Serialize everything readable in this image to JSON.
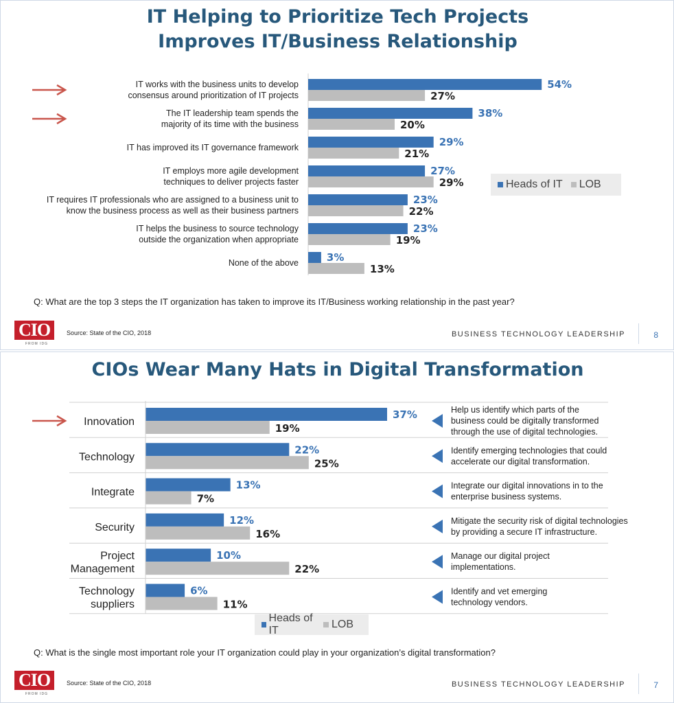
{
  "colors": {
    "heads_of_it": "#3a73b4",
    "lob": "#bdbdbd",
    "title": "#27587b",
    "arrow": "#c9564c",
    "logo": "#c41f2b"
  },
  "slide1": {
    "title_line1": "IT Helping to Prioritize Tech Projects",
    "title_line2": "Improves IT/Business Relationship",
    "legend": {
      "it": "Heads of IT",
      "lob": "LOB"
    },
    "question": "Q: What are the top 3 steps the IT organization has taken to improve its IT/Business working relationship in the past year?",
    "logo": "CIO",
    "logo_sub": "FROM IDG",
    "source": "Source: State of the CIO, 2018",
    "footer": "BUSINESS TECHNOLOGY LEADERSHIP",
    "page": "8"
  },
  "slide2": {
    "title": "CIOs Wear Many Hats in Digital Transformation",
    "legend": {
      "it": "Heads of IT",
      "lob": "LOB"
    },
    "question": "Q: What is the single most important role your IT organization could play in your organization’s digital transformation?",
    "logo": "CIO",
    "logo_sub": "FROM IDG",
    "source": "Source: State of the CIO, 2018",
    "footer": "BUSINESS TECHNOLOGY LEADERSHIP",
    "page": "7",
    "descriptions": [
      [
        "Help us identify which parts of the",
        "business could be digitally transformed",
        "through the use of digital technologies."
      ],
      [
        "Identify emerging technologies that could",
        "accelerate our digital transformation."
      ],
      [
        "Integrate our digital innovations in to the",
        "enterprise business systems."
      ],
      [
        "Mitigate the security risk of digital technologies",
        "by providing a secure IT infrastructure."
      ],
      [
        "Manage our digital project",
        "implementations."
      ],
      [
        "Identify and vet emerging",
        "technology vendors."
      ]
    ]
  },
  "chart_data": [
    {
      "type": "bar",
      "orientation": "horizontal",
      "title": "IT Helping to Prioritize Tech Projects Improves IT/Business Relationship",
      "categories": [
        [
          "IT works with the business units to develop",
          "consensus around prioritization of IT projects"
        ],
        [
          "The IT leadership team spends the",
          "majority of its time with the business"
        ],
        [
          "IT has improved its IT governance framework"
        ],
        [
          "IT employs more agile development",
          "techniques to deliver projects faster"
        ],
        [
          "IT requires IT professionals who are assigned to a business unit to",
          "know the business process as well as their business partners"
        ],
        [
          "IT helps the business to source technology",
          "outside the organization when appropriate"
        ],
        [
          "None of the above"
        ]
      ],
      "series": [
        {
          "name": "Heads of IT",
          "values": [
            54,
            38,
            29,
            27,
            23,
            23,
            3
          ]
        },
        {
          "name": "LOB",
          "values": [
            27,
            20,
            21,
            29,
            22,
            19,
            13
          ]
        }
      ],
      "value_suffix": "%",
      "highlighted": [
        0,
        1
      ],
      "legend_position": "right"
    },
    {
      "type": "bar",
      "orientation": "horizontal",
      "title": "CIOs Wear Many Hats in Digital Transformation",
      "categories": [
        [
          "Innovation"
        ],
        [
          "Technology"
        ],
        [
          "Integrate"
        ],
        [
          "Security"
        ],
        [
          "Project",
          "Management"
        ],
        [
          "Technology",
          "suppliers"
        ]
      ],
      "series": [
        {
          "name": "Heads of IT",
          "values": [
            37,
            22,
            13,
            12,
            10,
            6
          ]
        },
        {
          "name": "LOB",
          "values": [
            19,
            25,
            7,
            16,
            22,
            11
          ]
        }
      ],
      "value_suffix": "%",
      "highlighted": [
        0
      ],
      "legend_position": "bottom"
    }
  ]
}
